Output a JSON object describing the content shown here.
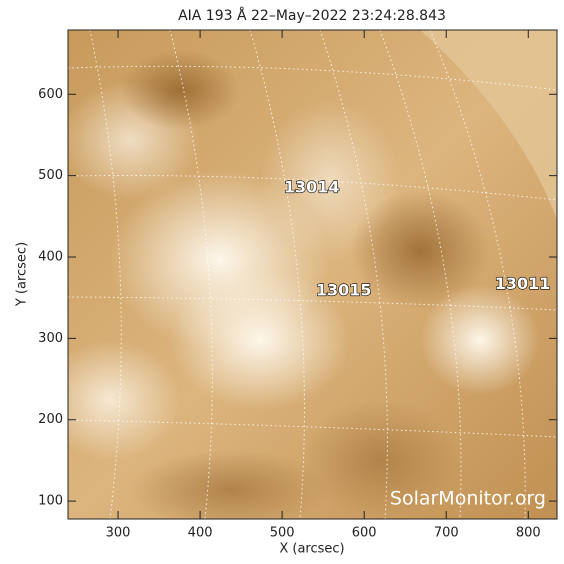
{
  "chart_data": {
    "type": "image",
    "title": "AIA 193 Å 22–May–2022 23:24:28.843",
    "x_label": "X (arcsec)",
    "y_label": "Y (arcsec)",
    "xlim": [
      239,
      835
    ],
    "ylim": [
      78,
      679
    ],
    "xticks": [
      300,
      400,
      500,
      600,
      700,
      800
    ],
    "yticks": [
      100,
      200,
      300,
      400,
      500,
      600
    ],
    "annotations": [
      {
        "text": "13014",
        "x": 536,
        "y": 485
      },
      {
        "text": "13015",
        "x": 575,
        "y": 358
      },
      {
        "text": "13011",
        "x": 793,
        "y": 366
      }
    ],
    "watermark": "SolarMonitor.org"
  }
}
